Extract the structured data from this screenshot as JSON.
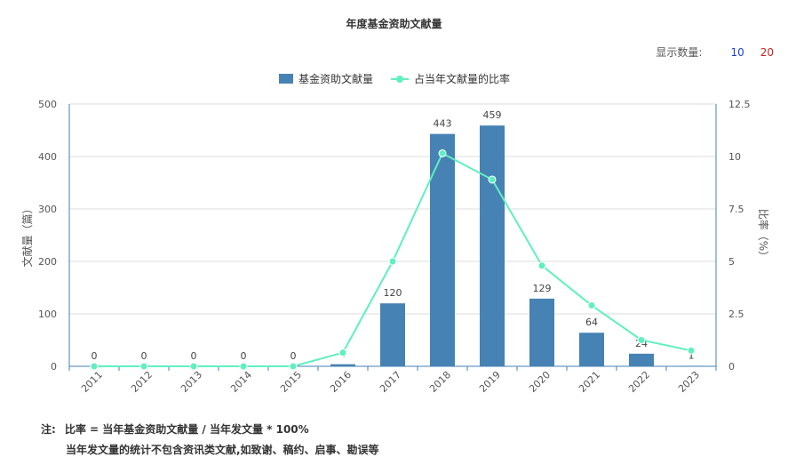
{
  "page": {
    "title": "年度基金资助文献量",
    "count_label": "显示数量:",
    "count_options": [
      "10",
      "20"
    ],
    "note_label": "注:",
    "note_line1": "比率 = 当年基金资助文献量 / 当年发文量 * 100%",
    "note_line2": "当年发文量的统计不包含资讯类文献,如致谢、稿约、启事、勘误等"
  },
  "chart_data": {
    "type": "bar",
    "categories": [
      "2011",
      "2012",
      "2013",
      "2014",
      "2015",
      "2016",
      "2017",
      "2018",
      "2019",
      "2020",
      "2021",
      "2022",
      "2023"
    ],
    "series": [
      {
        "name": "基金资助文献量",
        "type": "bar",
        "axis": "left",
        "color": "#4682b4",
        "values": [
          0,
          0,
          0,
          0,
          0,
          4,
          120,
          443,
          459,
          129,
          64,
          24,
          1
        ],
        "data_labels": [
          "0",
          "0",
          "0",
          "0",
          "0",
          "4",
          "120",
          "443",
          "459",
          "129",
          "64",
          "24",
          "1"
        ]
      },
      {
        "name": "占当年文献量的比率",
        "type": "line",
        "axis": "right",
        "color": "#5ff0c0",
        "values": [
          0,
          0,
          0,
          0,
          0,
          0.65,
          5.0,
          10.15,
          8.9,
          4.8,
          2.9,
          1.25,
          0.75
        ]
      }
    ],
    "ylabel": "文献量（篇）",
    "y2label": "比率（%）",
    "ylim": [
      0,
      500
    ],
    "y2lim": [
      0,
      12.5
    ],
    "yticks": [
      "0",
      "100",
      "200",
      "300",
      "400",
      "500"
    ],
    "y2ticks": [
      "0",
      "2.5",
      "5",
      "7.5",
      "10",
      "12.5"
    ],
    "legend_position": "top-center",
    "grid": true
  }
}
